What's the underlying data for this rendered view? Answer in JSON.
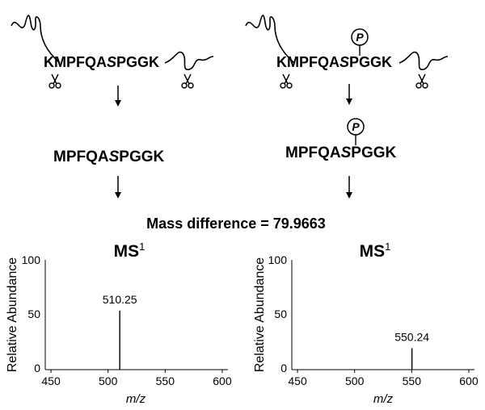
{
  "left_panel": {
    "peptide": {
      "prefix": "KMPFQA",
      "site": "S",
      "suffix": "PGGK"
    },
    "product": {
      "prefix": "MPFQA",
      "site": "S",
      "suffix": "PGGK"
    }
  },
  "right_panel": {
    "phospho_symbol": "P",
    "peptide": {
      "prefix": "KMPFQA",
      "site": "S",
      "suffix": "PGGK"
    },
    "product": {
      "prefix": "MPFQA",
      "site": "S",
      "suffix": "PGGK"
    }
  },
  "mass_difference": "Mass difference = 79.9663",
  "spectra": [
    {
      "title": "MS",
      "title_sup": "1",
      "ylabel": "Relative Abundance",
      "xlabel": "m/z",
      "y_ticks": [
        "100",
        "50",
        "0"
      ],
      "x_ticks": [
        "450",
        "500",
        "550",
        "600"
      ],
      "peak_label": "510.25"
    },
    {
      "title": "MS",
      "title_sup": "1",
      "ylabel": "Relative Abundance",
      "xlabel": "m/z",
      "y_ticks": [
        "100",
        "50",
        "0"
      ],
      "x_ticks": [
        "450",
        "500",
        "550",
        "600"
      ],
      "peak_label": "550.24"
    }
  ],
  "chart_data": [
    {
      "type": "bar",
      "title": "MS1",
      "xlabel": "m/z",
      "ylabel": "Relative Abundance",
      "xlim": [
        445,
        605
      ],
      "ylim": [
        0,
        100
      ],
      "x": [
        510.25
      ],
      "values": [
        55
      ]
    },
    {
      "type": "bar",
      "title": "MS1",
      "xlabel": "m/z",
      "ylabel": "Relative Abundance",
      "xlim": [
        445,
        605
      ],
      "ylim": [
        0,
        100
      ],
      "x": [
        550.24
      ],
      "values": [
        20
      ]
    }
  ]
}
